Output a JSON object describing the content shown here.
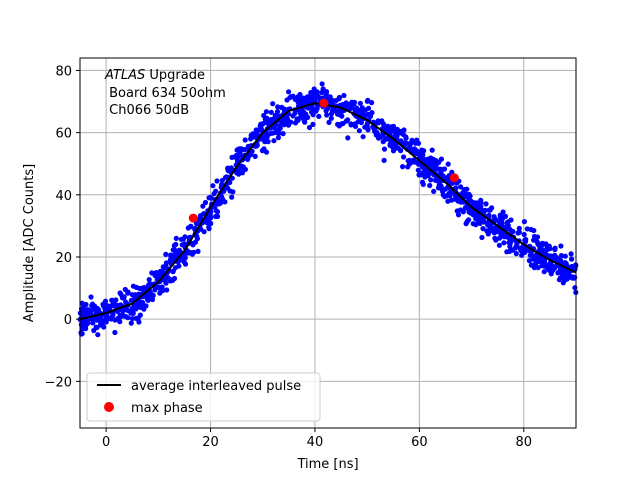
{
  "chart_data": {
    "type": "scatter",
    "xlabel": "Time [ns]",
    "ylabel": "Amplitude [ADC Counts]",
    "xlim": [
      -5,
      90
    ],
    "ylim": [
      -35,
      84
    ],
    "xticks": [
      0,
      20,
      40,
      60,
      80
    ],
    "yticks": [
      -20,
      0,
      20,
      40,
      60,
      80
    ],
    "xtick_labels": [
      "0",
      "20",
      "40",
      "60",
      "80"
    ],
    "ytick_labels": [
      "−20",
      "0",
      "20",
      "40",
      "60",
      "80"
    ],
    "grid": true,
    "legend_position": "lower-left",
    "annotation": {
      "line1_italic": "ATLAS",
      "line1_rest": " Upgrade",
      "line2": " Board 634 50ohm",
      "line3": " Ch066 50dB"
    },
    "colors": {
      "samples": "#0000ff",
      "average": "#000000",
      "max_phase": "#ff0000",
      "grid": "#b0b0b0"
    },
    "series": [
      {
        "name": "average interleaved pulse",
        "kind": "line",
        "x": [
          -5,
          0,
          5,
          10,
          15,
          20,
          25,
          30,
          35,
          40,
          45,
          50,
          55,
          60,
          65,
          70,
          75,
          80,
          85,
          90
        ],
        "y": [
          0,
          2,
          5,
          12,
          22,
          36,
          49,
          60,
          67,
          69.5,
          68,
          64,
          58,
          51,
          44,
          36,
          30,
          24,
          19,
          15
        ]
      },
      {
        "name": "max phase",
        "kind": "points",
        "x": [
          16.7,
          41.7,
          66.7
        ],
        "y": [
          32.5,
          69.5,
          45.5
        ]
      }
    ],
    "samples": {
      "kind": "scatter",
      "spread": 4,
      "x_range": [
        -5,
        90
      ],
      "count": 1400
    }
  }
}
